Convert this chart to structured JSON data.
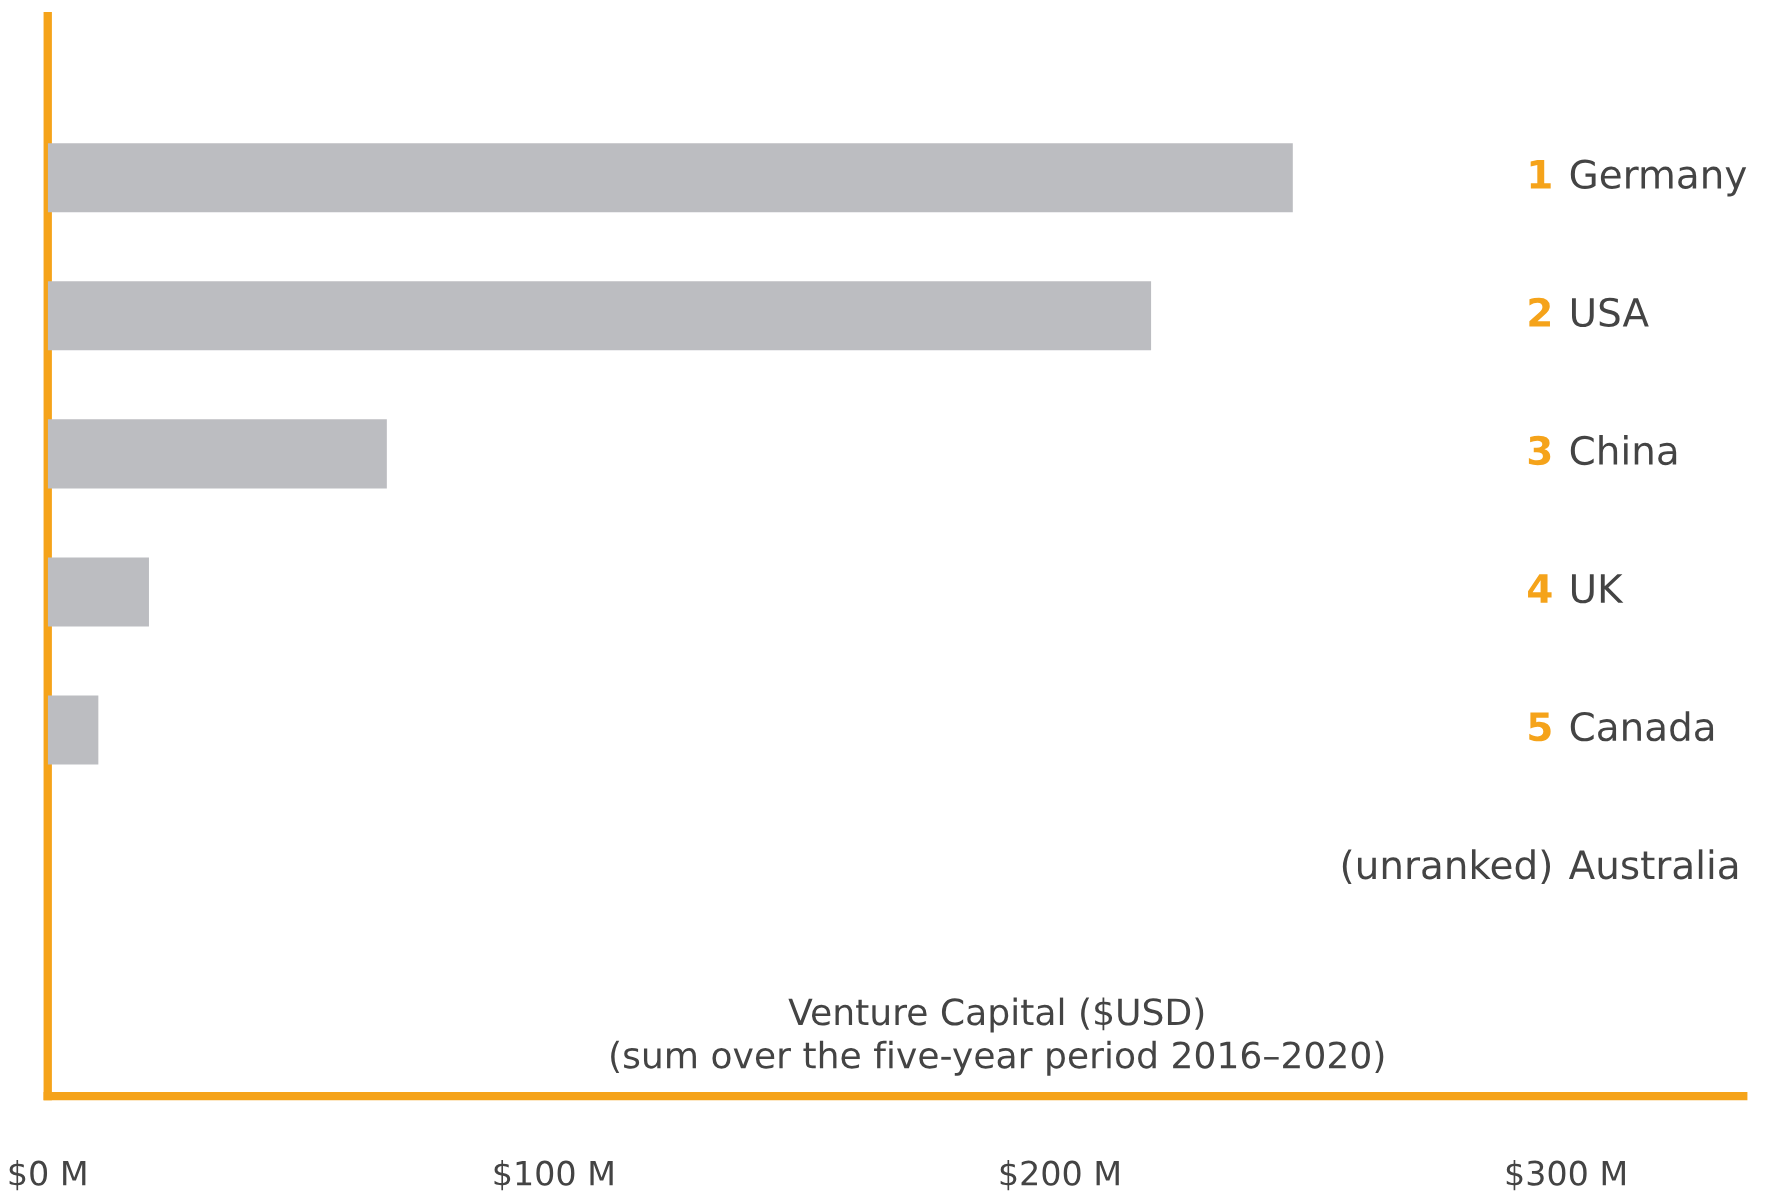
{
  "chart_data": {
    "type": "bar",
    "orientation": "horizontal",
    "categories": [
      "Germany",
      "USA",
      "China",
      "UK",
      "Canada",
      "Australia"
    ],
    "annotations": [
      "1",
      "2",
      "3",
      "4",
      "5",
      "(unranked)"
    ],
    "values": [
      246,
      218,
      67,
      20,
      10,
      null
    ],
    "color": "#bcbdc1",
    "xlabel": "Venture Capital ($USD)\n(sum over the five-year period 2016–2020)",
    "xlim": [
      0,
      335
    ],
    "xticks": [
      {
        "value": 0,
        "label": "$0 M"
      },
      {
        "value": 100,
        "label": "$100 M"
      },
      {
        "value": 200,
        "label": "$200 M"
      },
      {
        "value": 300,
        "label": "$300 M"
      }
    ],
    "grid": false
  }
}
